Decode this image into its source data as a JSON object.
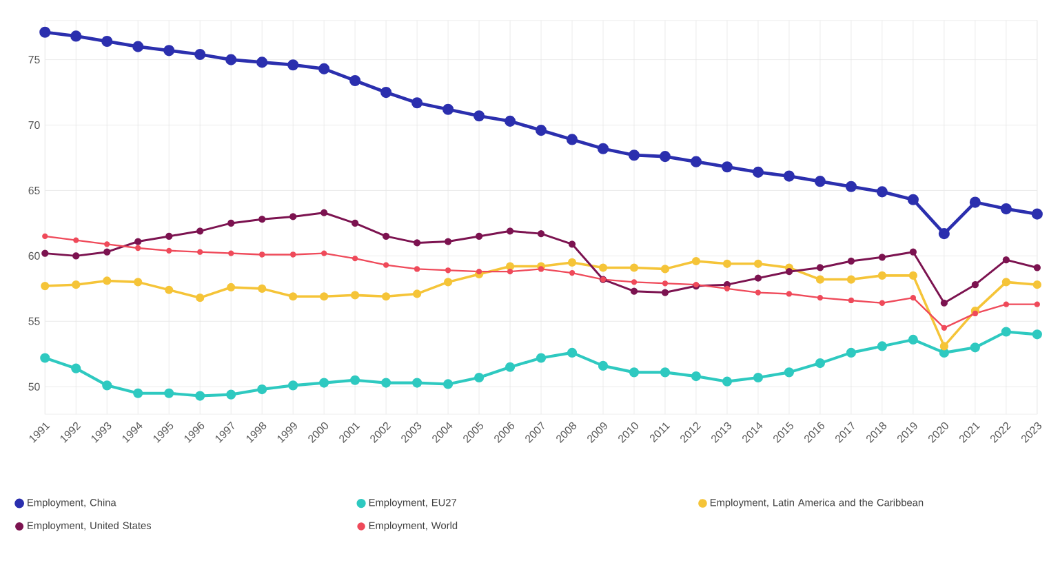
{
  "chart_data": {
    "type": "line",
    "x": [
      1991,
      1992,
      1993,
      1994,
      1995,
      1996,
      1997,
      1998,
      1999,
      2000,
      2001,
      2002,
      2003,
      2004,
      2005,
      2006,
      2007,
      2008,
      2009,
      2010,
      2011,
      2012,
      2013,
      2014,
      2015,
      2016,
      2017,
      2018,
      2019,
      2020,
      2021,
      2022,
      2023
    ],
    "xlim": [
      1991,
      2023
    ],
    "ylim": [
      47.9,
      78
    ],
    "xticks": [
      1991,
      1992,
      1993,
      1994,
      1995,
      1996,
      1997,
      1998,
      1999,
      2000,
      2001,
      2002,
      2003,
      2004,
      2005,
      2006,
      2007,
      2008,
      2009,
      2010,
      2011,
      2012,
      2013,
      2014,
      2015,
      2016,
      2017,
      2018,
      2019,
      2020,
      2021,
      2022,
      2023
    ],
    "yticks": [
      50,
      55,
      60,
      65,
      70,
      75
    ],
    "grid": true,
    "legend": "bottom",
    "marker": "circle",
    "line_style": "solid",
    "series": [
      {
        "name": "Employment, China",
        "color": "#2b2fae",
        "values": [
          77.1,
          76.8,
          76.4,
          76.0,
          75.7,
          75.4,
          75.0,
          74.8,
          74.6,
          74.3,
          73.4,
          72.5,
          71.7,
          71.2,
          70.7,
          70.3,
          69.6,
          68.9,
          68.2,
          67.7,
          67.6,
          67.2,
          66.8,
          66.4,
          66.1,
          65.7,
          65.3,
          64.9,
          64.3,
          61.7,
          64.1,
          63.6,
          63.2
        ]
      },
      {
        "name": "Employment, EU27",
        "color": "#2ec9c0",
        "values": [
          52.2,
          51.4,
          50.1,
          49.5,
          49.5,
          49.3,
          49.4,
          49.8,
          50.1,
          50.3,
          50.5,
          50.3,
          50.3,
          50.2,
          50.7,
          51.5,
          52.2,
          52.6,
          51.6,
          51.1,
          51.1,
          50.8,
          50.4,
          50.7,
          51.1,
          51.8,
          52.6,
          53.1,
          53.6,
          52.6,
          53.0,
          54.2,
          54.0
        ]
      },
      {
        "name": "Employment, Latin America and the Caribbean",
        "color": "#f5c438",
        "values": [
          57.7,
          57.8,
          58.1,
          58.0,
          57.4,
          56.8,
          57.6,
          57.5,
          56.9,
          56.9,
          57.0,
          56.9,
          57.1,
          58.0,
          58.6,
          59.2,
          59.2,
          59.5,
          59.1,
          59.1,
          59.0,
          59.6,
          59.4,
          59.4,
          59.1,
          58.2,
          58.2,
          58.5,
          58.5,
          53.1,
          55.8,
          58.0,
          57.8
        ]
      },
      {
        "name": "Employment, United States",
        "color": "#7c1350",
        "values": [
          60.2,
          60.0,
          60.3,
          61.1,
          61.5,
          61.9,
          62.5,
          62.8,
          63.0,
          63.3,
          62.5,
          61.5,
          61.0,
          61.1,
          61.5,
          61.9,
          61.7,
          60.9,
          58.2,
          57.3,
          57.2,
          57.7,
          57.8,
          58.3,
          58.8,
          59.1,
          59.6,
          59.9,
          60.3,
          56.4,
          57.8,
          59.7,
          59.1
        ]
      },
      {
        "name": "Employment, World",
        "color": "#ef4a5a",
        "values": [
          61.5,
          61.2,
          60.9,
          60.6,
          60.4,
          60.3,
          60.2,
          60.1,
          60.1,
          60.2,
          59.8,
          59.3,
          59.0,
          58.9,
          58.8,
          58.8,
          59.0,
          58.7,
          58.2,
          58.0,
          57.9,
          57.8,
          57.5,
          57.2,
          57.1,
          56.8,
          56.6,
          56.4,
          56.8,
          54.5,
          55.6,
          56.3,
          56.3
        ]
      }
    ]
  }
}
